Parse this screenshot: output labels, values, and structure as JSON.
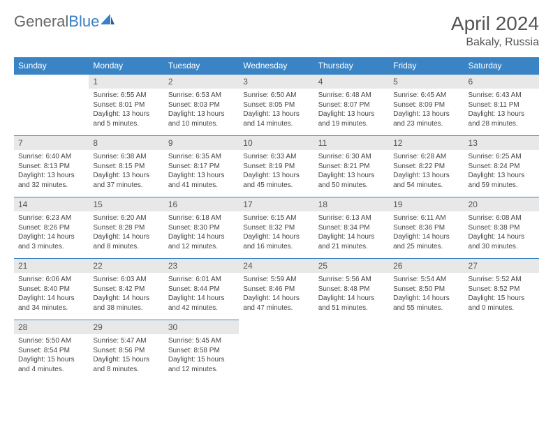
{
  "logo": {
    "text1": "General",
    "text2": "Blue"
  },
  "title": "April 2024",
  "location": "Bakaly, Russia",
  "colors": {
    "header_bg": "#3a84c5",
    "header_fg": "#ffffff",
    "daynum_bg": "#e8e8e8",
    "border": "#3a84c5",
    "text": "#444444",
    "logo_blue": "#3a7fc4"
  },
  "weekdays": [
    "Sunday",
    "Monday",
    "Tuesday",
    "Wednesday",
    "Thursday",
    "Friday",
    "Saturday"
  ],
  "leading_blanks": 1,
  "days": [
    {
      "n": 1,
      "sr": "6:55 AM",
      "ss": "8:01 PM",
      "dl": "13 hours and 5 minutes."
    },
    {
      "n": 2,
      "sr": "6:53 AM",
      "ss": "8:03 PM",
      "dl": "13 hours and 10 minutes."
    },
    {
      "n": 3,
      "sr": "6:50 AM",
      "ss": "8:05 PM",
      "dl": "13 hours and 14 minutes."
    },
    {
      "n": 4,
      "sr": "6:48 AM",
      "ss": "8:07 PM",
      "dl": "13 hours and 19 minutes."
    },
    {
      "n": 5,
      "sr": "6:45 AM",
      "ss": "8:09 PM",
      "dl": "13 hours and 23 minutes."
    },
    {
      "n": 6,
      "sr": "6:43 AM",
      "ss": "8:11 PM",
      "dl": "13 hours and 28 minutes."
    },
    {
      "n": 7,
      "sr": "6:40 AM",
      "ss": "8:13 PM",
      "dl": "13 hours and 32 minutes."
    },
    {
      "n": 8,
      "sr": "6:38 AM",
      "ss": "8:15 PM",
      "dl": "13 hours and 37 minutes."
    },
    {
      "n": 9,
      "sr": "6:35 AM",
      "ss": "8:17 PM",
      "dl": "13 hours and 41 minutes."
    },
    {
      "n": 10,
      "sr": "6:33 AM",
      "ss": "8:19 PM",
      "dl": "13 hours and 45 minutes."
    },
    {
      "n": 11,
      "sr": "6:30 AM",
      "ss": "8:21 PM",
      "dl": "13 hours and 50 minutes."
    },
    {
      "n": 12,
      "sr": "6:28 AM",
      "ss": "8:22 PM",
      "dl": "13 hours and 54 minutes."
    },
    {
      "n": 13,
      "sr": "6:25 AM",
      "ss": "8:24 PM",
      "dl": "13 hours and 59 minutes."
    },
    {
      "n": 14,
      "sr": "6:23 AM",
      "ss": "8:26 PM",
      "dl": "14 hours and 3 minutes."
    },
    {
      "n": 15,
      "sr": "6:20 AM",
      "ss": "8:28 PM",
      "dl": "14 hours and 8 minutes."
    },
    {
      "n": 16,
      "sr": "6:18 AM",
      "ss": "8:30 PM",
      "dl": "14 hours and 12 minutes."
    },
    {
      "n": 17,
      "sr": "6:15 AM",
      "ss": "8:32 PM",
      "dl": "14 hours and 16 minutes."
    },
    {
      "n": 18,
      "sr": "6:13 AM",
      "ss": "8:34 PM",
      "dl": "14 hours and 21 minutes."
    },
    {
      "n": 19,
      "sr": "6:11 AM",
      "ss": "8:36 PM",
      "dl": "14 hours and 25 minutes."
    },
    {
      "n": 20,
      "sr": "6:08 AM",
      "ss": "8:38 PM",
      "dl": "14 hours and 30 minutes."
    },
    {
      "n": 21,
      "sr": "6:06 AM",
      "ss": "8:40 PM",
      "dl": "14 hours and 34 minutes."
    },
    {
      "n": 22,
      "sr": "6:03 AM",
      "ss": "8:42 PM",
      "dl": "14 hours and 38 minutes."
    },
    {
      "n": 23,
      "sr": "6:01 AM",
      "ss": "8:44 PM",
      "dl": "14 hours and 42 minutes."
    },
    {
      "n": 24,
      "sr": "5:59 AM",
      "ss": "8:46 PM",
      "dl": "14 hours and 47 minutes."
    },
    {
      "n": 25,
      "sr": "5:56 AM",
      "ss": "8:48 PM",
      "dl": "14 hours and 51 minutes."
    },
    {
      "n": 26,
      "sr": "5:54 AM",
      "ss": "8:50 PM",
      "dl": "14 hours and 55 minutes."
    },
    {
      "n": 27,
      "sr": "5:52 AM",
      "ss": "8:52 PM",
      "dl": "15 hours and 0 minutes."
    },
    {
      "n": 28,
      "sr": "5:50 AM",
      "ss": "8:54 PM",
      "dl": "15 hours and 4 minutes."
    },
    {
      "n": 29,
      "sr": "5:47 AM",
      "ss": "8:56 PM",
      "dl": "15 hours and 8 minutes."
    },
    {
      "n": 30,
      "sr": "5:45 AM",
      "ss": "8:58 PM",
      "dl": "15 hours and 12 minutes."
    }
  ]
}
